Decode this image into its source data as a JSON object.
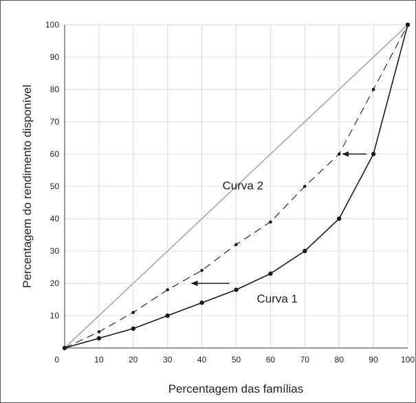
{
  "chart_data": {
    "type": "line",
    "title": "",
    "xlabel": "Percentagem das famílias",
    "ylabel": "Percentagem do rendimento disponível",
    "xlim": [
      0,
      100
    ],
    "ylim": [
      0,
      100
    ],
    "grid": true,
    "x_ticks": [
      0,
      10,
      20,
      30,
      40,
      50,
      60,
      70,
      80,
      90,
      100
    ],
    "y_ticks": [
      10,
      20,
      30,
      40,
      50,
      60,
      70,
      80,
      90,
      100
    ],
    "origin_label": "0",
    "colors": {
      "equality": "#a6a6a6",
      "curve1": "#1a1a1a",
      "curve2": "#1a1a1a",
      "grid": "#d9d9d9"
    },
    "series": [
      {
        "style": "solid-gray",
        "x": [
          0,
          100
        ],
        "y": [
          0,
          100
        ]
      },
      {
        "style": "solid",
        "x": [
          0,
          10,
          20,
          30,
          40,
          50,
          60,
          70,
          80,
          90,
          100
        ],
        "y": [
          0,
          3,
          6,
          10,
          14,
          18,
          23,
          30,
          40,
          60,
          100
        ]
      },
      {
        "style": "dashed",
        "x": [
          0,
          10,
          20,
          30,
          40,
          50,
          60,
          70,
          80,
          90,
          100
        ],
        "y": [
          0,
          5,
          11,
          18,
          24,
          32,
          39,
          50,
          60,
          80,
          100
        ]
      }
    ],
    "annotations": [
      {
        "text": "Curva 2",
        "x": 46,
        "y": 49
      },
      {
        "text": "Curva 1",
        "x": 56,
        "y": 14
      }
    ],
    "arrows": [
      {
        "from": [
          48,
          20
        ],
        "to": [
          37,
          20
        ]
      },
      {
        "from": [
          88,
          60
        ],
        "to": [
          81,
          60
        ]
      }
    ]
  }
}
